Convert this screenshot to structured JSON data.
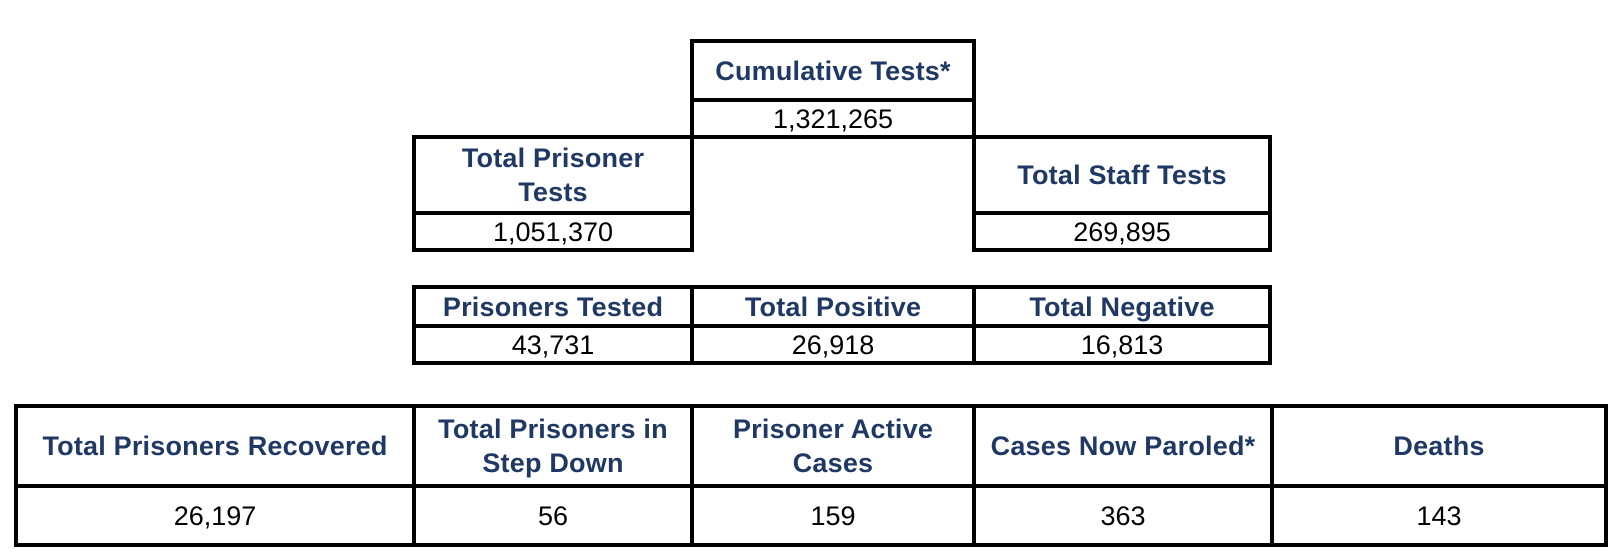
{
  "colors": {
    "header_text": "#1f3864",
    "value_text": "#000000",
    "border": "#000000"
  },
  "cumulative": {
    "label": "Cumulative Tests*",
    "value": "1,321,265"
  },
  "prisoner_tests": {
    "label": "Total Prisoner Tests",
    "value": "1,051,370"
  },
  "staff_tests": {
    "label": "Total Staff Tests",
    "value": "269,895"
  },
  "testing_results": [
    {
      "label": "Prisoners Tested",
      "value": "43,731"
    },
    {
      "label": "Total Positive",
      "value": "26,918"
    },
    {
      "label": "Total Negative",
      "value": "16,813"
    }
  ],
  "outcomes": [
    {
      "label": "Total Prisoners Recovered",
      "value": "26,197"
    },
    {
      "label": "Total Prisoners in Step Down",
      "value": "56"
    },
    {
      "label": "Prisoner Active Cases",
      "value": "159"
    },
    {
      "label": "Cases Now Paroled*",
      "value": "363"
    },
    {
      "label": "Deaths",
      "value": "143"
    }
  ]
}
